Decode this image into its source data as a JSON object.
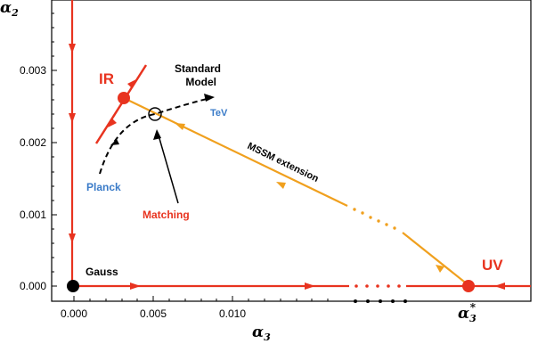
{
  "colors": {
    "red": "#e8331f",
    "orange": "#f0a01e",
    "blue": "#3a7bc8",
    "black": "#000000"
  },
  "axes": {
    "x_label": "α3",
    "y_label": "α2",
    "x_ticks": [
      "0.000",
      "0.005",
      "0.010"
    ],
    "y_ticks": [
      "0.000",
      "0.001",
      "0.002",
      "0.003"
    ],
    "x_star_label": "α3*"
  },
  "labels": {
    "ir": "IR",
    "uv": "UV",
    "gauss": "Gauss",
    "standard_model_line1": "Standard",
    "standard_model_line2": "Model",
    "tev": "TeV",
    "planck": "Planck",
    "matching": "Matching",
    "mssm": "MSSM extension"
  }
}
